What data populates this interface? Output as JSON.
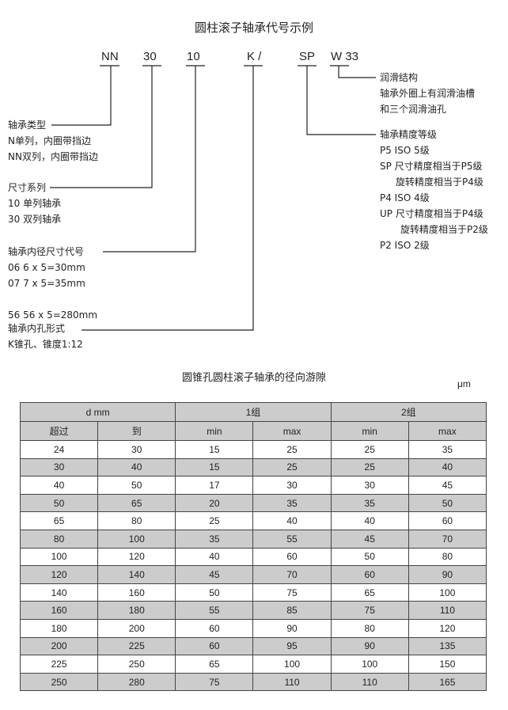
{
  "title": "圆柱滚子轴承代号示例",
  "codes": [
    "NN",
    "30",
    "10",
    "K /",
    "SP",
    "W 33"
  ],
  "annotations": {
    "lubrication": [
      "润滑结构",
      "轴承外圈上有润滑油槽",
      "和三个润滑油孔"
    ],
    "precision": [
      "轴承精度等级",
      "P5  ISO 5级",
      "SP 尺寸精度相当于P5级",
      "旋转精度相当于P4级",
      "P4  ISO 4级",
      "UP  尺寸精度相当于P4级",
      "旋转精度相当于P2级",
      "P2  ISO 2级"
    ],
    "type": [
      "轴承类型",
      "N单列，内圈带挡边",
      "NN双列，内圈带挡边"
    ],
    "series": [
      "尺寸系列",
      "10   单列轴承",
      "30   双列轴承"
    ],
    "bore": [
      "轴承内径尺寸代号",
      "06  6 x 5=30mm",
      "07  7 x 5=35mm",
      "56  56 x 5=280mm"
    ],
    "bore_form": [
      "轴承内孔形式",
      "K锥孔、锥度1:12"
    ]
  },
  "table": {
    "title": "圆锥孔圆柱滚子轴承的径向游隙",
    "unit": "μm",
    "group_headers": [
      "d   mm",
      "1组",
      "2组"
    ],
    "sub_headers": [
      "超过",
      "到",
      "min",
      "max",
      "min",
      "max"
    ],
    "rows": [
      [
        "24",
        "30",
        "15",
        "25",
        "25",
        "35"
      ],
      [
        "30",
        "40",
        "15",
        "25",
        "25",
        "40"
      ],
      [
        "40",
        "50",
        "17",
        "30",
        "30",
        "45"
      ],
      [
        "50",
        "65",
        "20",
        "35",
        "35",
        "50"
      ],
      [
        "65",
        "80",
        "25",
        "40",
        "40",
        "60"
      ],
      [
        "80",
        "100",
        "35",
        "55",
        "45",
        "70"
      ],
      [
        "100",
        "120",
        "40",
        "60",
        "50",
        "80"
      ],
      [
        "120",
        "140",
        "45",
        "70",
        "60",
        "90"
      ],
      [
        "140",
        "160",
        "50",
        "75",
        "65",
        "100"
      ],
      [
        "160",
        "180",
        "55",
        "85",
        "75",
        "110"
      ],
      [
        "180",
        "200",
        "60",
        "90",
        "80",
        "120"
      ],
      [
        "200",
        "225",
        "60",
        "95",
        "90",
        "135"
      ],
      [
        "225",
        "250",
        "65",
        "100",
        "100",
        "150"
      ],
      [
        "250",
        "280",
        "75",
        "110",
        "110",
        "165"
      ]
    ]
  }
}
